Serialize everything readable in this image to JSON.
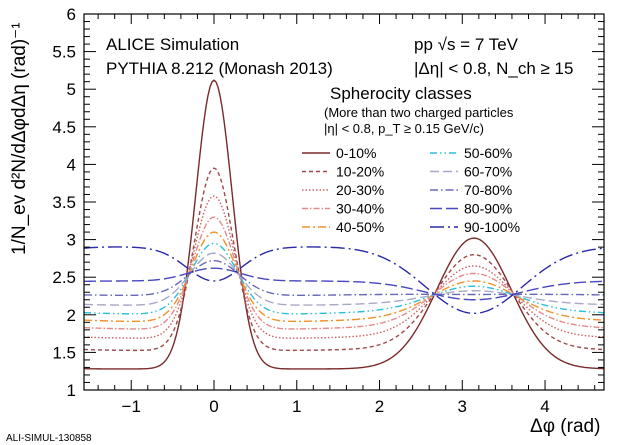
{
  "chart_data": {
    "type": "line",
    "xlabel": "Δφ (rad)",
    "ylabel": "1/N_ev d²N/dΔφdΔη (rad)⁻¹",
    "xlim": [
      -1.5708,
      4.7124
    ],
    "ylim": [
      1,
      6
    ],
    "x_ticks": [
      -1,
      0,
      1,
      2,
      3,
      4
    ],
    "y_ticks": [
      1,
      1.5,
      2,
      2.5,
      3,
      3.5,
      4,
      4.5,
      5,
      5.5,
      6
    ],
    "grid": false,
    "legend_position": "top-right",
    "annotations": {
      "left_line1": "ALICE Simulation",
      "left_line2": "PYTHIA 8.212 (Monash 2013)",
      "right_line1": "pp √s = 7 TeV",
      "right_line2": "|Δη| < 0.8, N_ch ≥ 15"
    },
    "legend": {
      "title": "Spherocity classes",
      "note1": "(More than two charged particles",
      "note2": "|η| < 0.8, p_T ≥ 0.15 GeV/c)"
    },
    "series": [
      {
        "name": "0-10%",
        "color": "#7a2a2a",
        "dash": "solid",
        "near_peak": 5.12,
        "near_base": 1.28,
        "away_peak": 3.02,
        "away_base": 1.28
      },
      {
        "name": "10-20%",
        "color": "#a04848",
        "dash": "4,3",
        "near_peak": 3.95,
        "near_base": 1.52,
        "away_peak": 2.8,
        "away_base": 1.55
      },
      {
        "name": "20-30%",
        "color": "#d06060",
        "dash": "1.5,2",
        "near_peak": 3.58,
        "near_base": 1.68,
        "away_peak": 2.65,
        "away_base": 1.72
      },
      {
        "name": "30-40%",
        "color": "#e58a8a",
        "dash": "6,2,1.5,2",
        "near_peak": 3.3,
        "near_base": 1.8,
        "away_peak": 2.55,
        "away_base": 1.85
      },
      {
        "name": "40-50%",
        "color": "#f0922b",
        "dash": "8,3,2,3",
        "near_peak": 3.1,
        "near_base": 1.9,
        "away_peak": 2.45,
        "away_base": 1.95
      },
      {
        "name": "50-60%",
        "color": "#28c0d8",
        "dash": "7,3,1.5,3,1.5,3",
        "near_peak": 2.95,
        "near_base": 2.0,
        "away_peak": 2.38,
        "away_base": 2.05
      },
      {
        "name": "60-70%",
        "color": "#a8a8c8",
        "dash": "9,4",
        "near_peak": 2.82,
        "near_base": 2.12,
        "away_peak": 2.32,
        "away_base": 2.15
      },
      {
        "name": "70-80%",
        "color": "#6868b8",
        "dash": "8,3,1.5,3",
        "near_peak": 2.72,
        "near_base": 2.25,
        "away_peak": 2.27,
        "away_base": 2.28
      },
      {
        "name": "80-90%",
        "color": "#4848c0",
        "dash": "12,4",
        "near_peak": 2.62,
        "near_base": 2.45,
        "away_peak": 2.2,
        "away_base": 2.45
      },
      {
        "name": "90-100%",
        "color": "#2a2aa8",
        "dash": "14,4,2,4",
        "near_peak": 2.45,
        "near_base": 2.9,
        "away_peak": 2.02,
        "away_base": 2.92
      }
    ]
  },
  "watermark": "ALI-SIMUL-130858"
}
